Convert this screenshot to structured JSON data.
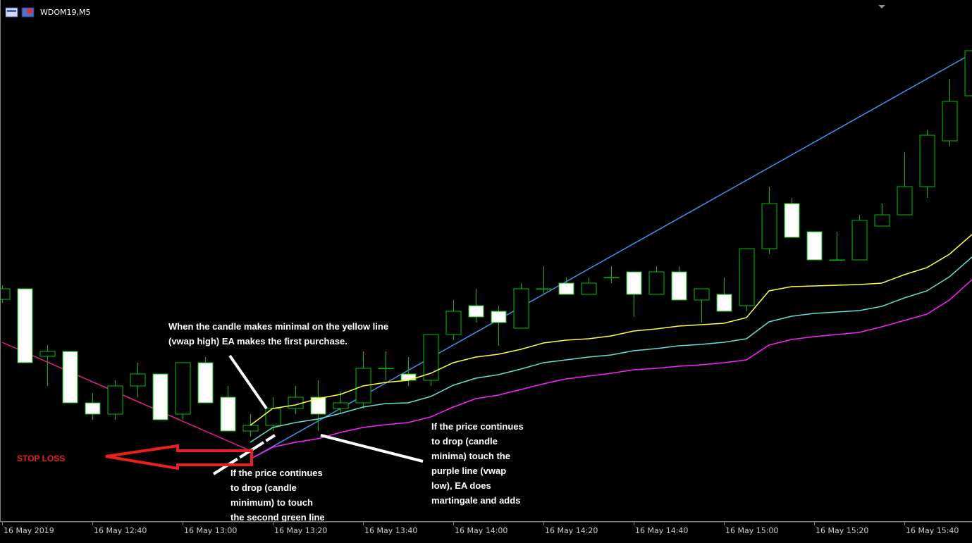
{
  "chart_data": {
    "type": "candlestick",
    "title": "WDOM19,M5",
    "categories": [
      "16 May 2019",
      null,
      null,
      null,
      "16 May 12:40",
      null,
      null,
      null,
      "16 May 13:00",
      null,
      null,
      null,
      "16 May 13:20",
      null,
      null,
      null,
      "16 May 13:40",
      null,
      null,
      null,
      "16 May 14:00",
      null,
      null,
      null,
      "16 May 14:20",
      null,
      null,
      null,
      "16 May 14:40",
      null,
      null,
      null,
      "16 May 15:00",
      null,
      null,
      null,
      "16 May 15:20",
      null,
      null,
      null,
      "16 May 15:40",
      null,
      null,
      null
    ],
    "open": [
      346,
      361,
      265,
      272,
      199,
      183,
      223,
      240,
      183,
      256,
      207,
      159,
      167,
      191,
      207,
      191,
      199,
      248,
      240,
      231,
      296,
      337,
      329,
      305,
      361,
      369,
      353,
      377,
      385,
      353,
      385,
      345,
      353,
      337,
      418,
      482,
      442,
      402,
      402,
      450,
      466,
      506,
      571,
      635
    ],
    "high": [
      366,
      361,
      281,
      272,
      213,
      231,
      256,
      240,
      256,
      264,
      223,
      183,
      207,
      223,
      231,
      215,
      272,
      272,
      264,
      296,
      345,
      361,
      337,
      369,
      393,
      377,
      377,
      393,
      385,
      393,
      393,
      361,
      377,
      418,
      506,
      490,
      442,
      442,
      466,
      482,
      555,
      587,
      659,
      699
    ],
    "low": [
      341,
      256,
      223,
      199,
      175,
      175,
      207,
      175,
      175,
      199,
      159,
      151,
      159,
      183,
      159,
      183,
      191,
      231,
      223,
      223,
      288,
      313,
      280,
      305,
      353,
      353,
      353,
      369,
      321,
      353,
      345,
      313,
      329,
      329,
      410,
      434,
      402,
      402,
      402,
      450,
      466,
      490,
      563,
      631
    ],
    "close": [
      361,
      256,
      272,
      199,
      183,
      223,
      240,
      175,
      256,
      199,
      159,
      167,
      191,
      207,
      183,
      199,
      248,
      248,
      231,
      296,
      329,
      321,
      313,
      361,
      361,
      353,
      369,
      377,
      353,
      385,
      345,
      361,
      329,
      418,
      482,
      434,
      402,
      402,
      458,
      466,
      506,
      579,
      627,
      699
    ],
    "up_color": "#00c000",
    "down_color": "#ffffff",
    "ylim": [
      0,
      771
    ],
    "series": [
      {
        "color": "#ffff40",
        "values": [
          null,
          null,
          null,
          null,
          null,
          null,
          null,
          null,
          null,
          null,
          null,
          167,
          191,
          196,
          205,
          211,
          223,
          228,
          231,
          241,
          256,
          264,
          268,
          275,
          284,
          288,
          290,
          294,
          301,
          304,
          308,
          310,
          312,
          320,
          358,
          364,
          365,
          366,
          367,
          369,
          381,
          391,
          410,
          438
        ]
      },
      {
        "color": "#60e0d0",
        "values": [
          null,
          null,
          null,
          null,
          null,
          null,
          null,
          null,
          null,
          null,
          null,
          143,
          164,
          171,
          176,
          184,
          193,
          198,
          199,
          208,
          224,
          234,
          239,
          247,
          256,
          260,
          264,
          267,
          273,
          276,
          280,
          282,
          285,
          290,
          314,
          322,
          326,
          328,
          330,
          336,
          348,
          358,
          378,
          406
        ]
      },
      {
        "color": "#ff20ff",
        "values": [
          null,
          null,
          null,
          null,
          null,
          null,
          null,
          null,
          null,
          null,
          null,
          119,
          136,
          143,
          148,
          157,
          164,
          168,
          171,
          179,
          193,
          205,
          210,
          218,
          226,
          233,
          237,
          241,
          246,
          248,
          251,
          253,
          256,
          260,
          281,
          289,
          293,
          296,
          299,
          307,
          316,
          325,
          345,
          374
        ]
      }
    ],
    "trendlines": [
      {
        "color": "#3c96f0",
        "x": [
          11,
          43
        ],
        "values": [
          119,
          695
        ]
      },
      {
        "color": "#e0208a",
        "x": [
          0,
          11
        ],
        "values": [
          285,
          131
        ]
      }
    ],
    "annotations": [
      [
        "When the candle makes minimal on the yellow line",
        "(vwap high) EA makes the first purchase."
      ],
      [
        " If the price continues",
        "to drop (candle",
        "minima) touch the",
        "purple line (vwap",
        "low), EA does",
        "martingale and adds"
      ],
      [
        " If the price continues",
        "to drop (candle",
        "minimum) to touch",
        "the second green line"
      ],
      [
        "STOP LOSS"
      ]
    ]
  }
}
